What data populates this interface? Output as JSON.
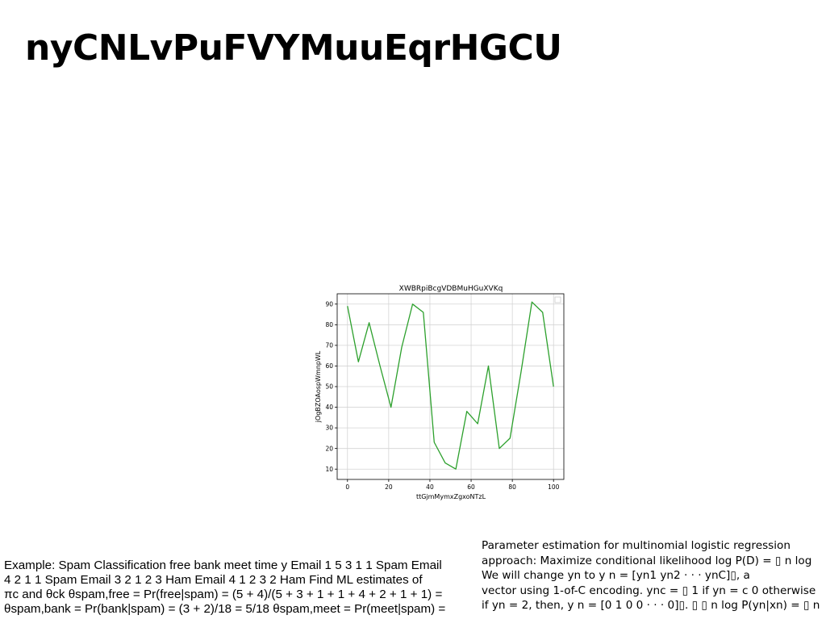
{
  "slide": {
    "title": "nyCNLvPuFVYMuuEqrHGCU"
  },
  "chart_data": {
    "type": "line",
    "title": "XWBRpiBcgVDBMuHGuXVKq",
    "xlabel": "ttGjmMymxZgxoNTzL",
    "ylabel": "jOgBZOAospWmnpWL",
    "x": [
      0,
      5.3,
      10.5,
      15.8,
      21.1,
      26.3,
      31.6,
      36.8,
      42.1,
      47.4,
      52.6,
      57.9,
      63.2,
      68.4,
      73.7,
      78.9,
      84.2,
      89.5,
      94.7,
      100
    ],
    "series": [
      {
        "values": [
          89,
          62,
          81,
          60,
          40,
          69,
          90,
          86,
          23,
          13,
          10,
          38,
          32,
          60,
          20,
          25,
          57,
          91,
          86,
          50
        ],
        "color": "#2ca02c"
      }
    ],
    "xlim": [
      -5,
      105
    ],
    "ylim": [
      5,
      95
    ],
    "xticks": [
      "0",
      "20",
      "40",
      "60",
      "80",
      "100"
    ],
    "yticks": [
      "10",
      "20",
      "30",
      "40",
      "50",
      "60",
      "70",
      "80",
      "90"
    ],
    "grid": true,
    "legend": "top-right"
  },
  "left_text": {
    "lines": [
      "Example: Spam Classification free bank meet time y Email 1 5 3 1 1 Spam Email",
      "4 2 1 1 Spam Email 3 2 1 2 3 Ham Email 4 1 2 3 2 Ham Find ML estimates of",
      "πc and θck θspam,free = Pr(free|spam) = (5 + 4)/(5 + 3 + 1 + 1 + 4 + 2 + 1 + 1) =",
      "θspam,bank = Pr(bank|spam) = (3 + 2)/18 = 5/18 θspam,meet = Pr(meet|spam) ="
    ]
  },
  "right_text": {
    "lines": [
      "Parameter estimation for multinomial logistic regression",
      "approach: Maximize conditional likelihood log P(D) = ▯ n log",
      "We will change yn to y n = [yn1 yn2 · · · ynC]▯, a",
      "vector using 1-of-C encoding. ync = ▯ 1 if yn = c 0 otherwise",
      "if yn = 2, then, y n = [0 1 0 0 · · · 0]▯. ▯ ▯ n log P(yn|xn) = ▯ n"
    ]
  }
}
